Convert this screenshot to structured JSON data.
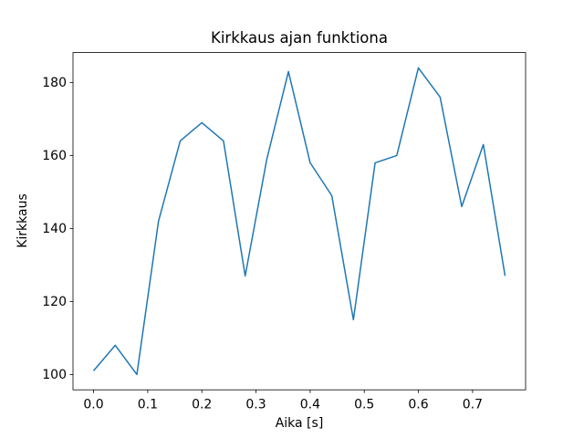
{
  "chart_data": {
    "type": "line",
    "title": "Kirkkaus ajan funktiona",
    "xlabel": "Aika [s]",
    "ylabel": "Kirkkaus",
    "x": [
      0.0,
      0.04,
      0.08,
      0.12,
      0.16,
      0.2,
      0.24,
      0.28,
      0.32,
      0.36,
      0.4,
      0.44,
      0.48,
      0.52,
      0.56,
      0.6,
      0.64,
      0.68,
      0.72,
      0.76
    ],
    "values": [
      101,
      108,
      100,
      142,
      164,
      169,
      164,
      127,
      159,
      183,
      158,
      149,
      115,
      158,
      160,
      184,
      176,
      146,
      163,
      127
    ],
    "line_color": "#1f77b4",
    "background_color": "#ffffff",
    "xlim": [
      -0.038,
      0.798
    ],
    "ylim": [
      95.8,
      188.2
    ],
    "xticks": {
      "values": [
        0.0,
        0.1,
        0.2,
        0.3,
        0.4,
        0.5,
        0.6,
        0.7
      ],
      "labels": [
        "0.0",
        "0.1",
        "0.2",
        "0.3",
        "0.4",
        "0.5",
        "0.6",
        "0.7"
      ]
    },
    "yticks": {
      "values": [
        100,
        120,
        140,
        160,
        180
      ],
      "labels": [
        "100",
        "120",
        "140",
        "160",
        "180"
      ]
    },
    "grid": false,
    "legend": null
  }
}
